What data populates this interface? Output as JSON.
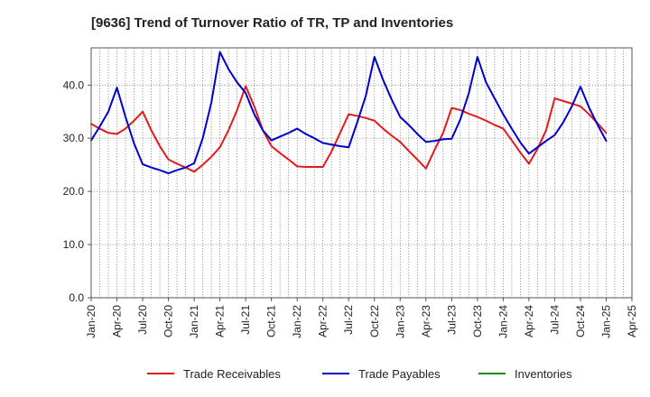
{
  "chart_data": {
    "type": "line",
    "title": "[9636]  Trend of Turnover Ratio of TR, TP and Inventories",
    "xlabel": "",
    "ylabel": "",
    "ylim": [
      0,
      47
    ],
    "yticks": [
      0,
      10,
      20,
      30,
      40
    ],
    "ytick_labels": [
      "0.0",
      "10.0",
      "20.0",
      "30.0",
      "40.0"
    ],
    "xtick_labels": [
      "Jan-20",
      "Apr-20",
      "Jul-20",
      "Oct-20",
      "Jan-21",
      "Apr-21",
      "Jul-21",
      "Oct-21",
      "Jan-22",
      "Apr-22",
      "Jul-22",
      "Oct-22",
      "Jan-23",
      "Apr-23",
      "Jul-23",
      "Oct-23",
      "Jan-24",
      "Apr-24",
      "Jul-24",
      "Oct-24",
      "Jan-25",
      "Apr-25"
    ],
    "x_months": [
      "Jan-20",
      "Feb-20",
      "Mar-20",
      "Apr-20",
      "May-20",
      "Jun-20",
      "Jul-20",
      "Aug-20",
      "Sep-20",
      "Oct-20",
      "Nov-20",
      "Dec-20",
      "Jan-21",
      "Feb-21",
      "Mar-21",
      "Apr-21",
      "May-21",
      "Jun-21",
      "Jul-21",
      "Aug-21",
      "Sep-21",
      "Oct-21",
      "Nov-21",
      "Dec-21",
      "Jan-22",
      "Feb-22",
      "Mar-22",
      "Apr-22",
      "May-22",
      "Jun-22",
      "Jul-22",
      "Aug-22",
      "Sep-22",
      "Oct-22",
      "Nov-22",
      "Dec-22",
      "Jan-23",
      "Feb-23",
      "Mar-23",
      "Apr-23",
      "May-23",
      "Jun-23",
      "Jul-23",
      "Aug-23",
      "Sep-23",
      "Oct-23",
      "Nov-23",
      "Dec-23",
      "Jan-24",
      "Feb-24",
      "Mar-24",
      "Apr-24",
      "May-24",
      "Jun-24",
      "Jul-24",
      "Aug-24",
      "Sep-24",
      "Oct-24",
      "Nov-24",
      "Dec-24",
      "Jan-25"
    ],
    "grid": true,
    "legend_position": "bottom",
    "series": [
      {
        "name": "Trade Receivables",
        "color": "#e31a1c",
        "values": [
          32.7,
          31.8,
          31.0,
          30.8,
          31.8,
          33.3,
          35.0,
          31.5,
          28.5,
          26.0,
          25.2,
          24.5,
          23.7,
          25.0,
          26.5,
          28.3,
          31.5,
          35.3,
          39.8,
          36.0,
          31.5,
          28.5,
          27.2,
          26.0,
          24.7,
          24.6,
          24.6,
          24.6,
          27.5,
          31.0,
          34.5,
          34.2,
          33.8,
          33.3,
          31.8,
          30.5,
          29.3,
          27.6,
          26.0,
          24.3,
          27.8,
          31.0,
          35.7,
          35.3,
          34.6,
          34.0,
          33.3,
          32.5,
          31.8,
          29.6,
          27.3,
          25.2,
          28.0,
          31.5,
          37.5,
          37.0,
          36.5,
          36.0,
          34.5,
          32.8,
          31.0
        ]
      },
      {
        "name": "Trade Payables",
        "color": "#0000cc",
        "values": [
          29.6,
          32.2,
          35.0,
          39.5,
          34.0,
          29.0,
          25.1,
          24.5,
          24.0,
          23.4,
          24.0,
          24.5,
          25.3,
          30.0,
          36.7,
          46.2,
          43.0,
          40.5,
          38.5,
          34.5,
          31.5,
          29.6,
          30.3,
          31.0,
          31.8,
          30.8,
          30.0,
          29.1,
          28.8,
          28.5,
          28.3,
          33.0,
          38.0,
          45.3,
          41.0,
          37.3,
          34.0,
          32.5,
          30.8,
          29.3,
          29.5,
          29.8,
          29.9,
          33.5,
          38.5,
          45.3,
          40.5,
          37.5,
          34.5,
          31.8,
          29.2,
          27.1,
          28.3,
          29.5,
          30.6,
          33.0,
          36.0,
          39.7,
          35.8,
          32.5,
          29.5
        ]
      },
      {
        "name": "Inventories",
        "color": "#1a8c1a",
        "values": []
      }
    ]
  }
}
